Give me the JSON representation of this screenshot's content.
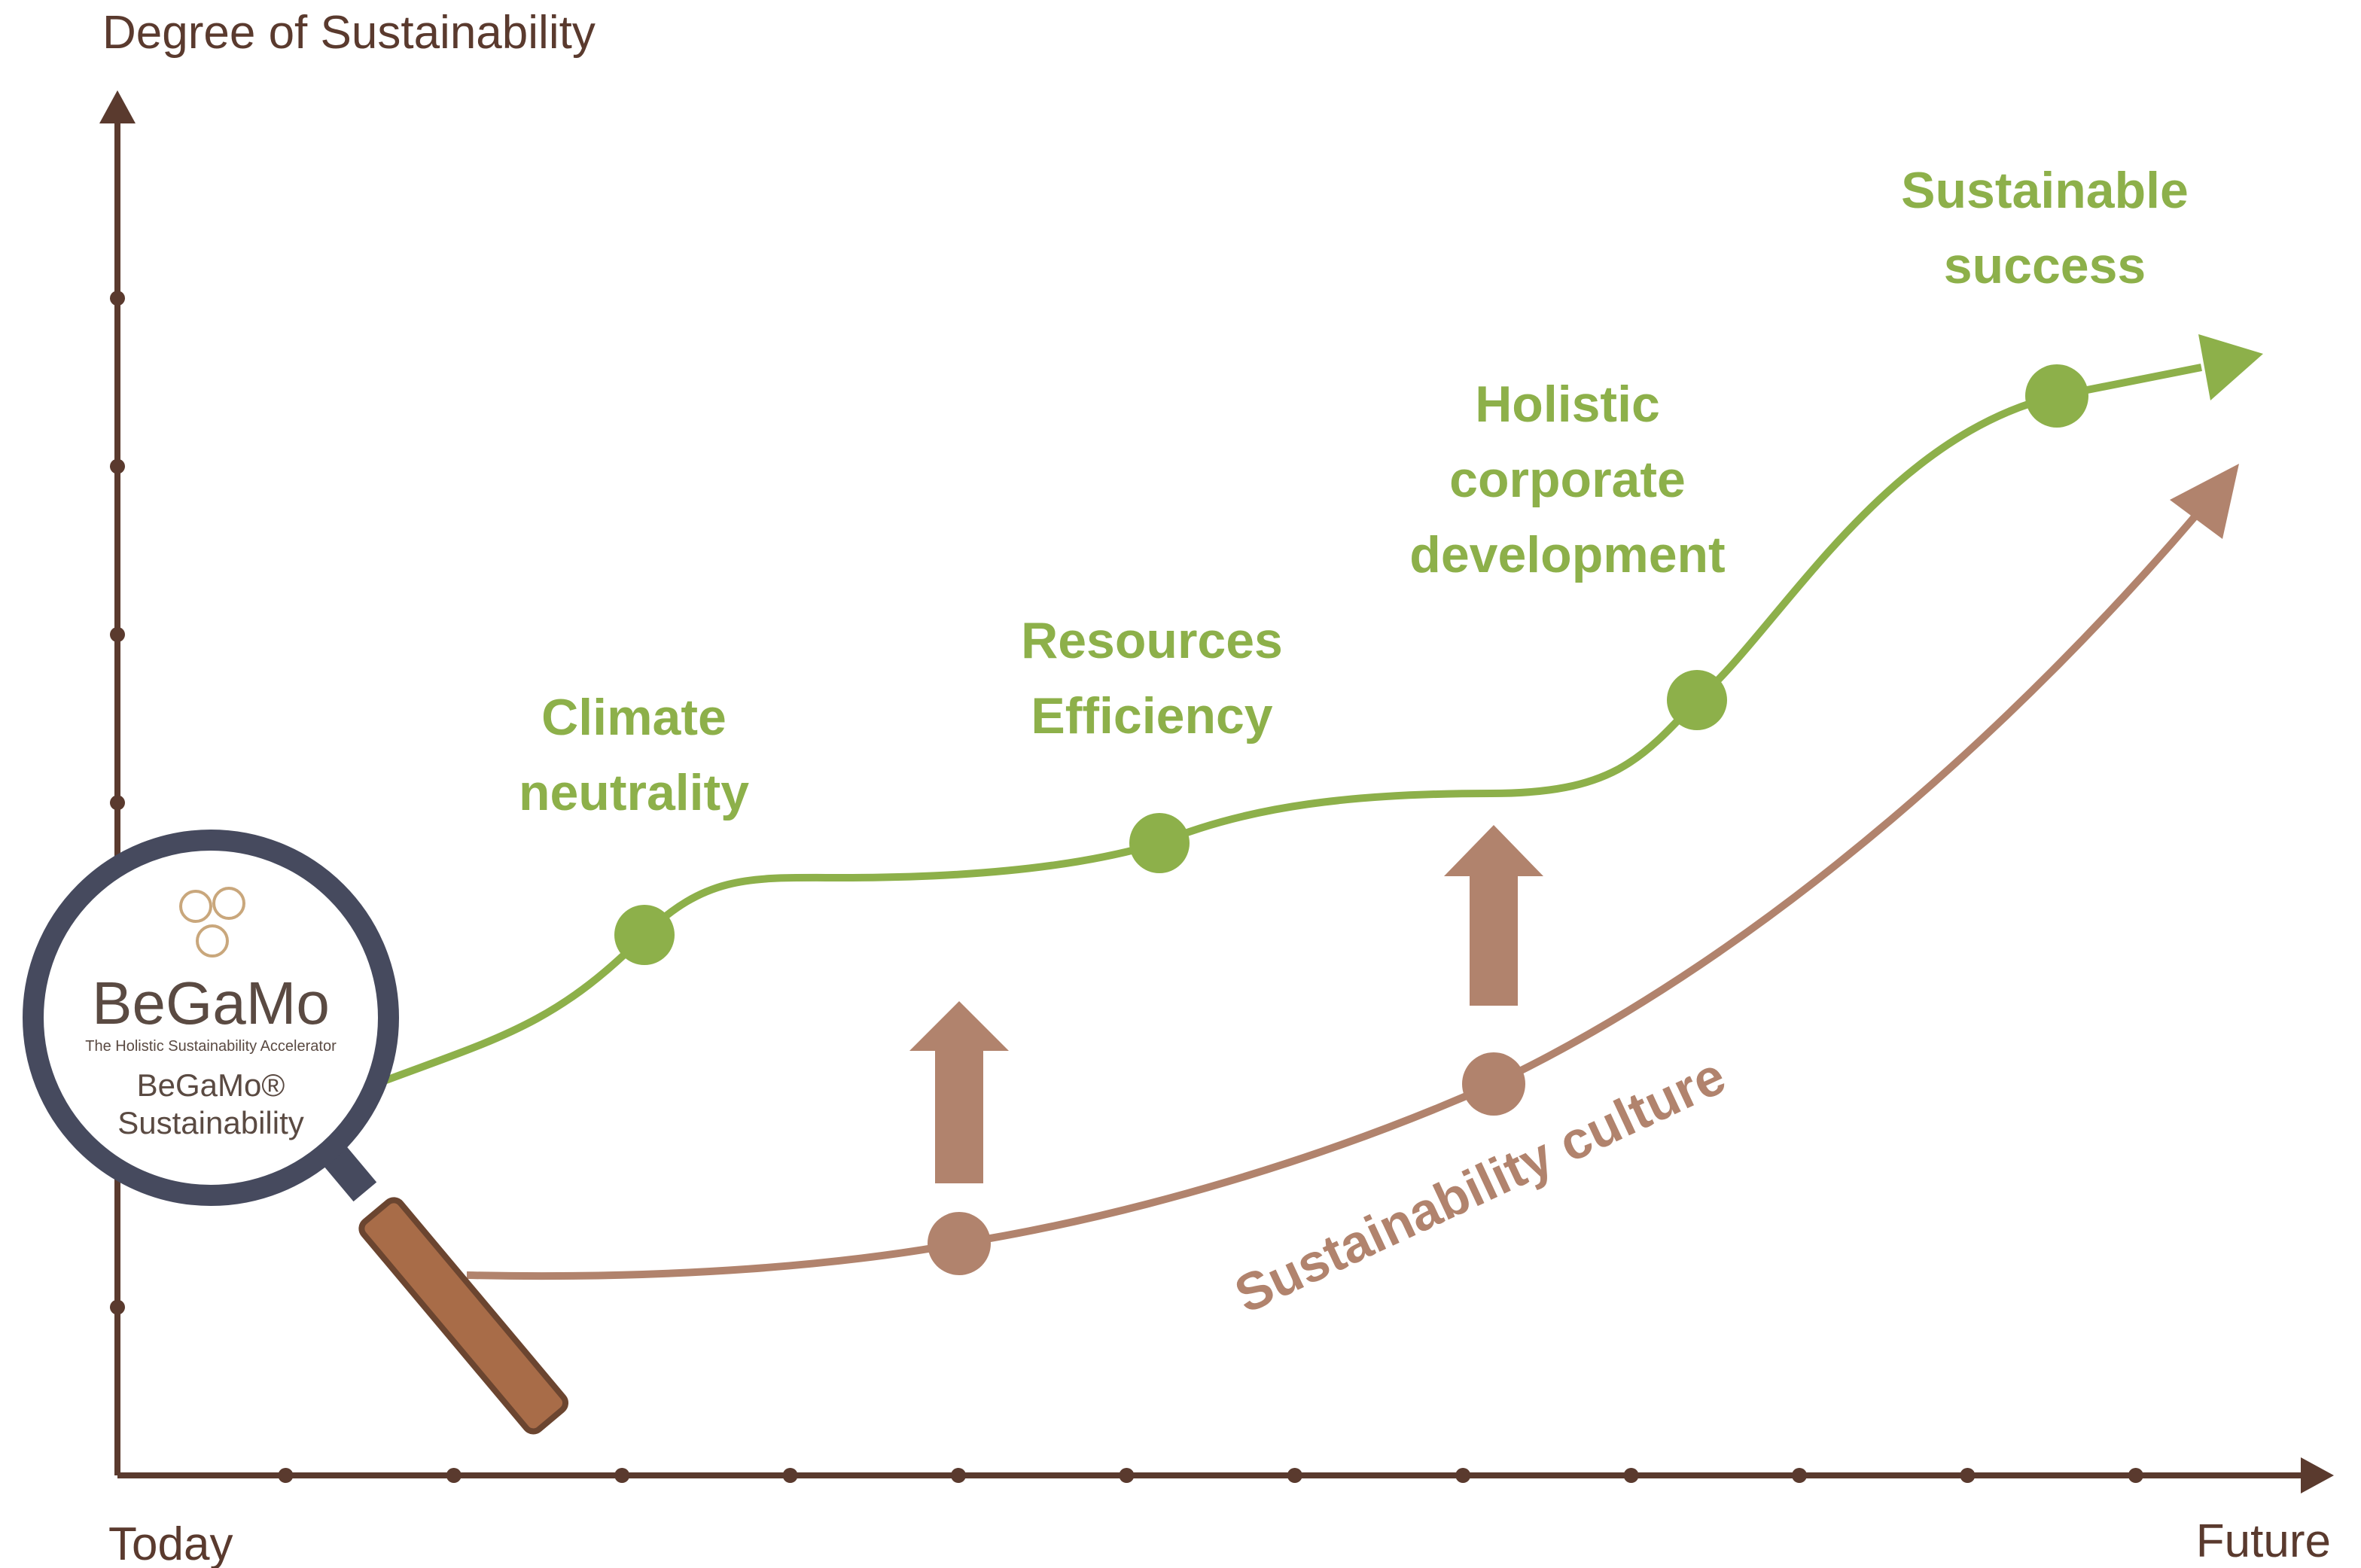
{
  "axis": {
    "y_label": "Degree of Sustainability",
    "x_start": "Today",
    "x_end": "Future"
  },
  "milestones": [
    {
      "lines": [
        "Climate",
        "neutrality"
      ]
    },
    {
      "lines": [
        "Resources",
        "Efficiency"
      ]
    },
    {
      "lines": [
        "Holistic",
        "corporate",
        "development"
      ]
    },
    {
      "lines": [
        "Sustainable",
        "success"
      ]
    }
  ],
  "culture_label": "Sustainability culture",
  "logo": {
    "brand": "BeGaMo",
    "tagline": "The Holistic Sustainability Accelerator",
    "product": "BeGaMo®",
    "subtitle": "Sustainability"
  }
}
